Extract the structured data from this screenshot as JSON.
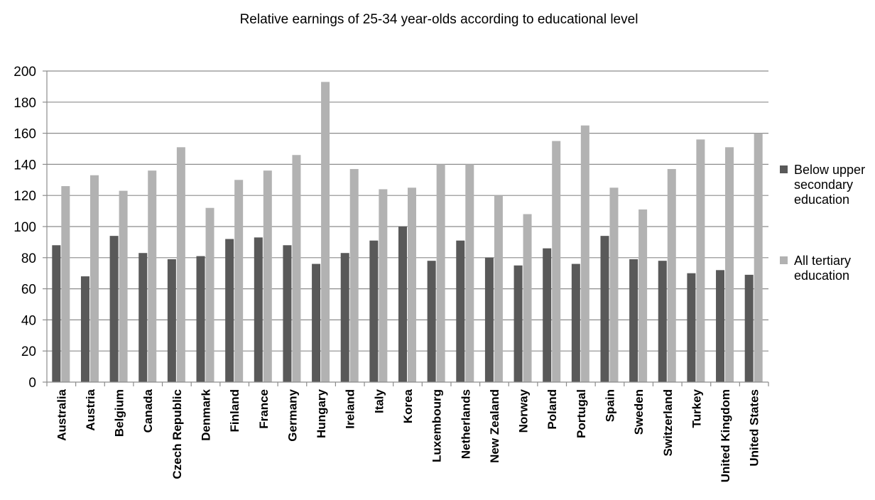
{
  "chart_data": {
    "type": "bar",
    "title": "Relative earnings of 25-34 year-olds according to educational level",
    "xlabel": "",
    "ylabel": "",
    "ylim": [
      0,
      200
    ],
    "yticks": [
      0,
      20,
      40,
      60,
      80,
      100,
      120,
      140,
      160,
      180,
      200
    ],
    "grid": true,
    "legend_position": "right",
    "categories": [
      "Australia",
      "Austria",
      "Belgium",
      "Canada",
      "Czech Republic",
      "Denmark",
      "Finland",
      "France",
      "Germany",
      "Hungary",
      "Ireland",
      "Italy",
      "Korea",
      "Luxembourg",
      "Netherlands",
      "New Zealand",
      "Norway",
      "Poland",
      "Portugal",
      "Spain",
      "Sweden",
      "Switzerland",
      "Turkey",
      "United Kingdom",
      "United States"
    ],
    "series": [
      {
        "name": "Below upper secondary education",
        "legend_lines": [
          "Below upper",
          "secondary",
          "education"
        ],
        "color": "#595959",
        "values": [
          88,
          68,
          94,
          83,
          79,
          81,
          92,
          93,
          88,
          76,
          83,
          91,
          100,
          78,
          91,
          80,
          75,
          86,
          76,
          94,
          79,
          78,
          70,
          72,
          69
        ]
      },
      {
        "name": "All tertiary education",
        "legend_lines": [
          "All tertiary",
          "education"
        ],
        "color": "#b2b2b2",
        "values": [
          126,
          133,
          123,
          136,
          151,
          112,
          130,
          136,
          146,
          193,
          137,
          124,
          125,
          140,
          140,
          120,
          108,
          155,
          165,
          125,
          111,
          137,
          156,
          151,
          160
        ]
      }
    ]
  }
}
